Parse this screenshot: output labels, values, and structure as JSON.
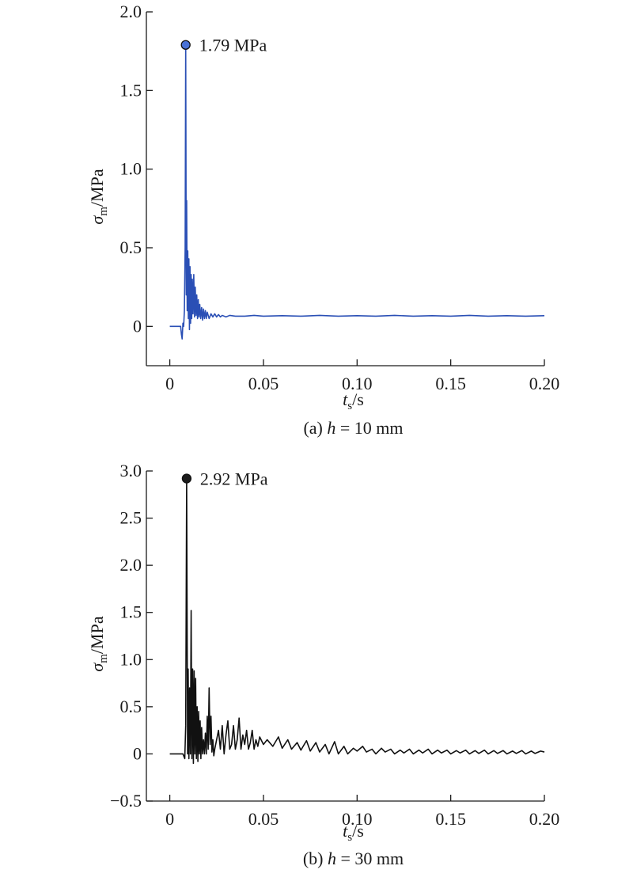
{
  "chart_data": [
    {
      "type": "line",
      "caption": {
        "prefix": "(a) ",
        "var": "h",
        "rest": " = 10 mm"
      },
      "xlabel": {
        "main": "t",
        "sub": "s",
        "unit": "/s"
      },
      "ylabel": {
        "main": "σ",
        "sub": "m",
        "unit": "/MPa"
      },
      "xlim": [
        -0.0125,
        0.2
      ],
      "ylim": [
        -0.25,
        2.0
      ],
      "xticks": [
        0,
        0.05,
        0.1,
        0.15,
        0.2
      ],
      "xtick_labels": [
        "0",
        "0.05",
        "0.10",
        "0.15",
        "0.20"
      ],
      "yticks": [
        0,
        0.5,
        1.0,
        1.5,
        2.0
      ],
      "ytick_labels": [
        "0",
        "0.5",
        "1.0",
        "1.5",
        "2.0"
      ],
      "color": "#2a4fb5",
      "marker_fill": "#4a72d6",
      "peak": {
        "x": 0.0085,
        "y": 1.79,
        "label": "1.79 MPa"
      },
      "series": [
        {
          "x": [
            0,
            0.0058,
            0.0062,
            0.0066,
            0.007,
            0.0074,
            0.0078,
            0.0082,
            0.0085,
            0.0088,
            0.009,
            0.0093,
            0.0096,
            0.0099,
            0.0102,
            0.0105,
            0.0108,
            0.0111,
            0.0114,
            0.0117,
            0.012,
            0.0124,
            0.0128,
            0.0132,
            0.0136,
            0.014,
            0.0144,
            0.0148,
            0.0152,
            0.0156,
            0.016,
            0.0165,
            0.017,
            0.0175,
            0.018,
            0.0185,
            0.019,
            0.0195,
            0.02,
            0.021,
            0.022,
            0.023,
            0.024,
            0.025,
            0.026,
            0.027,
            0.028,
            0.03,
            0.032,
            0.035,
            0.04,
            0.045,
            0.05,
            0.06,
            0.07,
            0.08,
            0.09,
            0.1,
            0.11,
            0.12,
            0.13,
            0.14,
            0.15,
            0.16,
            0.17,
            0.18,
            0.19,
            0.2
          ],
          "y": [
            0,
            0,
            -0.05,
            -0.08,
            0.02,
            0.0,
            0.1,
            0.5,
            1.79,
            0.2,
            0.8,
            0.1,
            0.48,
            0.05,
            0.43,
            -0.02,
            0.38,
            0.02,
            0.33,
            0.05,
            0.3,
            0.08,
            0.33,
            0.06,
            0.25,
            0.07,
            0.2,
            0.05,
            0.17,
            0.06,
            0.14,
            0.05,
            0.12,
            0.04,
            0.11,
            0.05,
            0.1,
            0.05,
            0.09,
            0.05,
            0.08,
            0.06,
            0.08,
            0.06,
            0.075,
            0.06,
            0.07,
            0.06,
            0.07,
            0.065,
            0.065,
            0.07,
            0.065,
            0.068,
            0.065,
            0.07,
            0.065,
            0.068,
            0.065,
            0.07,
            0.065,
            0.068,
            0.065,
            0.07,
            0.065,
            0.068,
            0.065,
            0.068
          ]
        }
      ]
    },
    {
      "type": "line",
      "caption": {
        "prefix": "(b) ",
        "var": "h",
        "rest": " = 30 mm"
      },
      "xlabel": {
        "main": "t",
        "sub": "s",
        "unit": "/s"
      },
      "ylabel": {
        "main": "σ",
        "sub": "m",
        "unit": "/MPa"
      },
      "xlim": [
        -0.0125,
        0.2
      ],
      "ylim": [
        -0.5,
        3.0
      ],
      "xticks": [
        0,
        0.05,
        0.1,
        0.15,
        0.2
      ],
      "xtick_labels": [
        "0",
        "0.05",
        "0.10",
        "0.15",
        "0.20"
      ],
      "yticks": [
        -0.5,
        0,
        0.5,
        1.0,
        1.5,
        2.0,
        2.5,
        3.0
      ],
      "ytick_labels": [
        "−0.5",
        "0",
        "0.5",
        "1.0",
        "1.5",
        "2.0",
        "2.5",
        "3.0"
      ],
      "color": "#111111",
      "marker_fill": "#1c1c1c",
      "peak": {
        "x": 0.009,
        "y": 2.92,
        "label": "2.92 MPa"
      },
      "series": [
        {
          "x": [
            0,
            0.007,
            0.008,
            0.0085,
            0.009,
            0.0095,
            0.0098,
            0.0102,
            0.0106,
            0.011,
            0.0114,
            0.0118,
            0.0122,
            0.0126,
            0.013,
            0.0134,
            0.0138,
            0.0142,
            0.0146,
            0.015,
            0.0154,
            0.0158,
            0.0162,
            0.0166,
            0.017,
            0.0175,
            0.018,
            0.0185,
            0.019,
            0.0195,
            0.02,
            0.0205,
            0.021,
            0.0215,
            0.022,
            0.0225,
            0.023,
            0.0235,
            0.024,
            0.025,
            0.026,
            0.027,
            0.028,
            0.029,
            0.03,
            0.031,
            0.032,
            0.033,
            0.034,
            0.035,
            0.036,
            0.037,
            0.038,
            0.039,
            0.04,
            0.041,
            0.042,
            0.043,
            0.044,
            0.045,
            0.046,
            0.047,
            0.048,
            0.05,
            0.052,
            0.055,
            0.058,
            0.06,
            0.063,
            0.065,
            0.068,
            0.07,
            0.073,
            0.075,
            0.078,
            0.08,
            0.083,
            0.085,
            0.088,
            0.09,
            0.093,
            0.095,
            0.098,
            0.1,
            0.103,
            0.105,
            0.108,
            0.11,
            0.113,
            0.115,
            0.118,
            0.12,
            0.123,
            0.125,
            0.128,
            0.13,
            0.133,
            0.135,
            0.138,
            0.14,
            0.143,
            0.145,
            0.148,
            0.15,
            0.153,
            0.155,
            0.158,
            0.16,
            0.163,
            0.165,
            0.168,
            0.17,
            0.173,
            0.175,
            0.178,
            0.18,
            0.183,
            0.185,
            0.188,
            0.19,
            0.193,
            0.195,
            0.198,
            0.2
          ],
          "y": [
            0,
            0,
            -0.05,
            0.3,
            2.92,
            0.0,
            0.9,
            -0.05,
            0.7,
            0.0,
            1.52,
            -0.05,
            0.9,
            -0.1,
            0.88,
            0.0,
            0.8,
            -0.05,
            0.5,
            -0.08,
            0.45,
            0.0,
            0.35,
            -0.05,
            0.28,
            0.0,
            0.15,
            0.0,
            0.22,
            0.0,
            0.4,
            0.05,
            0.7,
            0.1,
            0.4,
            0.02,
            0.15,
            -0.02,
            0.05,
            0.15,
            0.25,
            0.05,
            0.3,
            0.0,
            0.2,
            0.35,
            0.05,
            0.1,
            0.3,
            0.05,
            0.15,
            0.38,
            0.05,
            0.2,
            0.1,
            0.25,
            0.05,
            0.12,
            0.25,
            0.05,
            0.15,
            0.08,
            0.18,
            0.1,
            0.15,
            0.08,
            0.18,
            0.06,
            0.15,
            0.05,
            0.12,
            0.04,
            0.14,
            0.03,
            0.12,
            0.02,
            0.1,
            0.0,
            0.13,
            0.0,
            0.08,
            0.0,
            0.06,
            0.03,
            0.08,
            0.02,
            0.05,
            0.0,
            0.06,
            0.02,
            0.05,
            0.0,
            0.04,
            0.01,
            0.05,
            0.0,
            0.04,
            0.01,
            0.05,
            0.0,
            0.04,
            0.01,
            0.04,
            0.0,
            0.035,
            0.01,
            0.04,
            0.0,
            0.035,
            0.005,
            0.04,
            0.0,
            0.035,
            0.005,
            0.035,
            0.0,
            0.03,
            0.005,
            0.035,
            0.0,
            0.03,
            0.005,
            0.03,
            0.02
          ]
        }
      ]
    }
  ]
}
